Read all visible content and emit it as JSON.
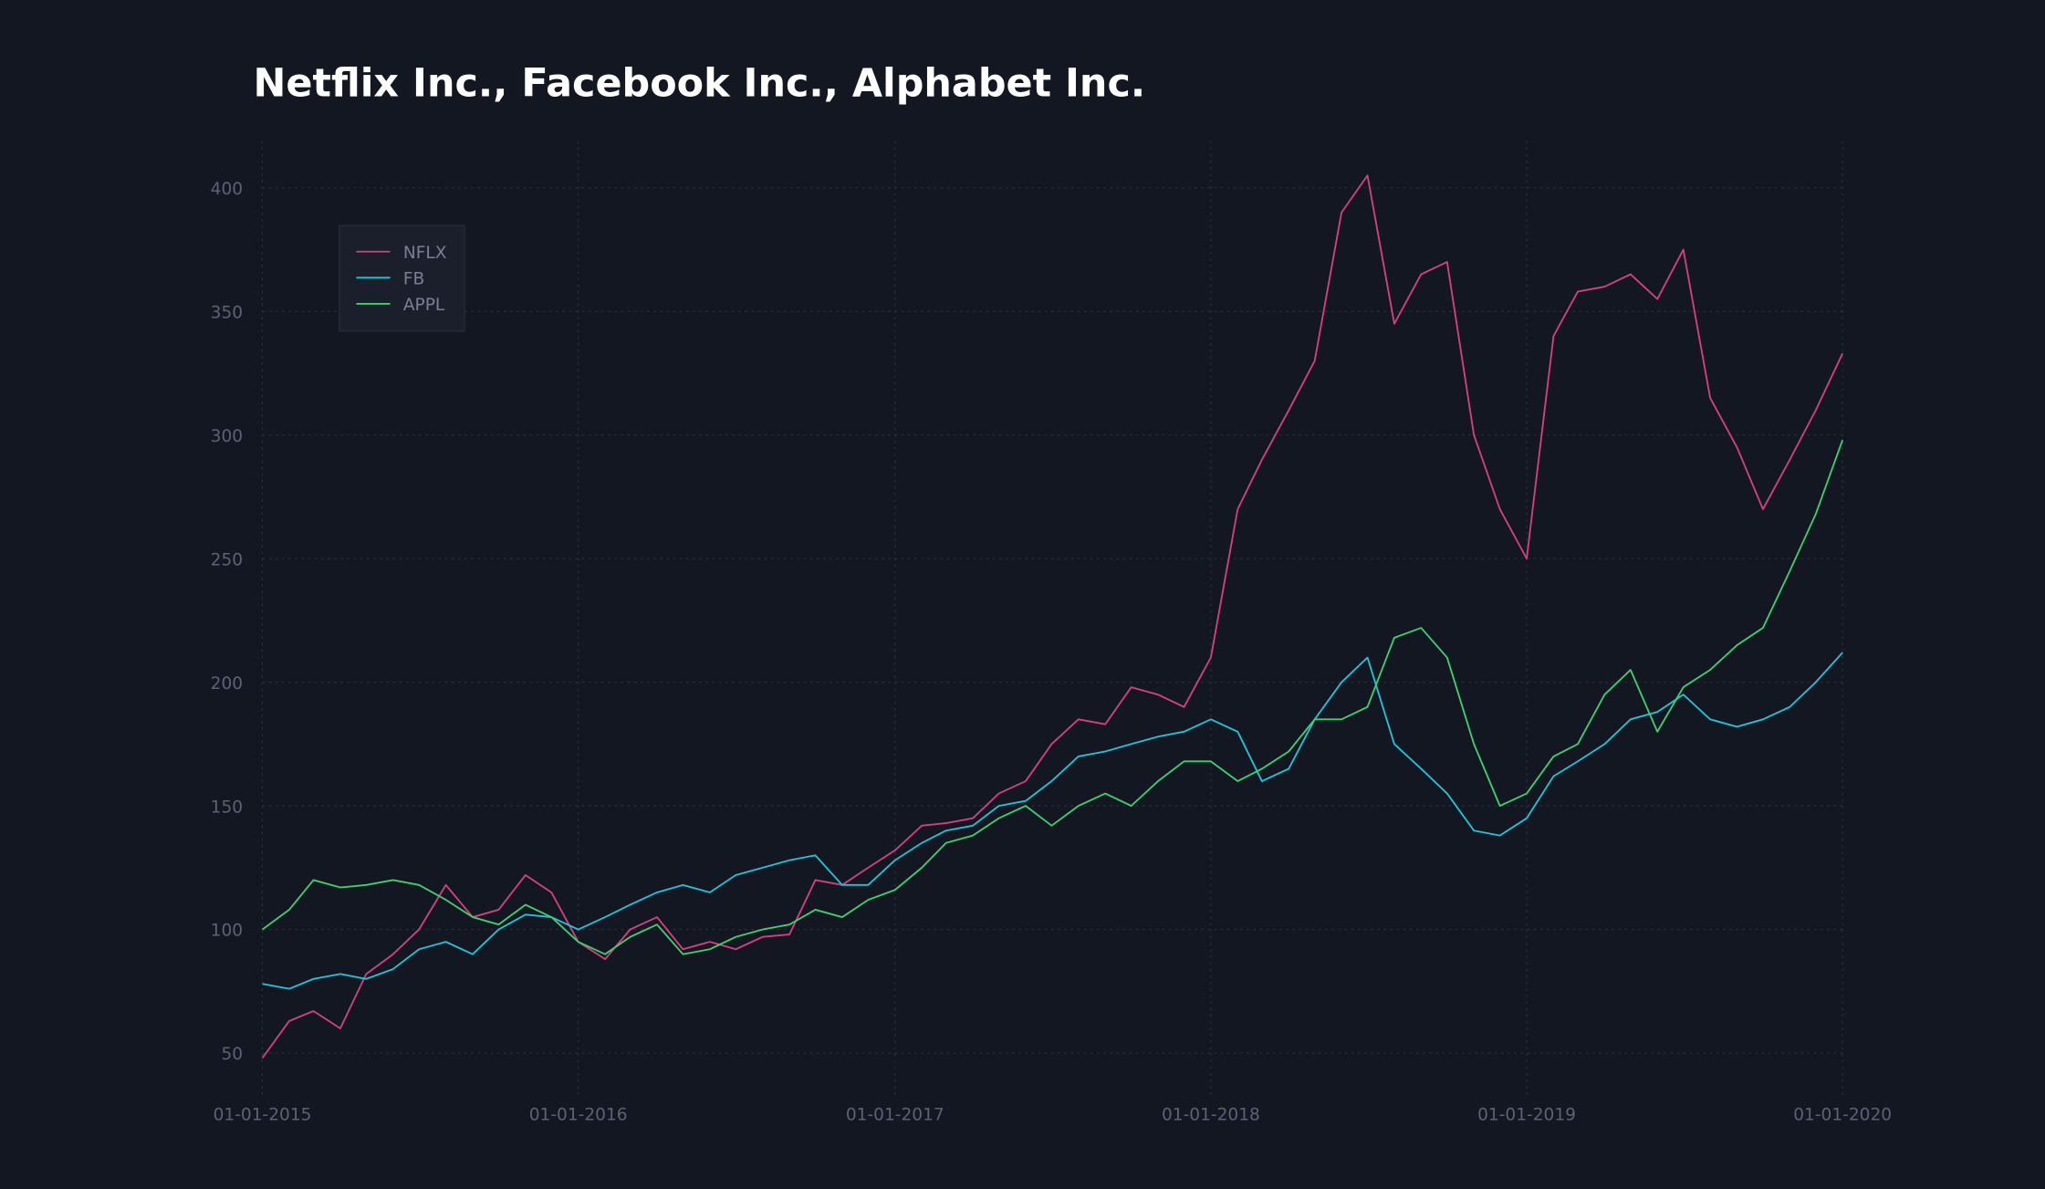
{
  "chart_data": {
    "type": "line",
    "title": "Netflix Inc., Facebook Inc., Alphabet Inc.",
    "x": [
      "2015-01-01",
      "2015-02-01",
      "2015-03-01",
      "2015-04-01",
      "2015-05-01",
      "2015-06-01",
      "2015-07-01",
      "2015-08-01",
      "2015-09-01",
      "2015-10-01",
      "2015-11-01",
      "2015-12-01",
      "2016-01-01",
      "2016-02-01",
      "2016-03-01",
      "2016-04-01",
      "2016-05-01",
      "2016-06-01",
      "2016-07-01",
      "2016-08-01",
      "2016-09-01",
      "2016-10-01",
      "2016-11-01",
      "2016-12-01",
      "2017-01-01",
      "2017-02-01",
      "2017-03-01",
      "2017-04-01",
      "2017-05-01",
      "2017-06-01",
      "2017-07-01",
      "2017-08-01",
      "2017-09-01",
      "2017-10-01",
      "2017-11-01",
      "2017-12-01",
      "2018-01-01",
      "2018-02-01",
      "2018-03-01",
      "2018-04-01",
      "2018-05-01",
      "2018-06-01",
      "2018-07-01",
      "2018-08-01",
      "2018-09-01",
      "2018-10-01",
      "2018-11-01",
      "2018-12-01",
      "2019-01-01",
      "2019-02-01",
      "2019-03-01",
      "2019-04-01",
      "2019-05-01",
      "2019-06-01",
      "2019-07-01",
      "2019-08-01",
      "2019-09-01",
      "2019-10-01",
      "2019-11-01",
      "2019-12-01",
      "2020-01-01"
    ],
    "series": [
      {
        "name": "NFLX",
        "color": "#d63f7f",
        "values": [
          48,
          63,
          67,
          60,
          82,
          90,
          100,
          118,
          105,
          108,
          122,
          115,
          95,
          88,
          100,
          105,
          92,
          95,
          92,
          97,
          98,
          120,
          118,
          125,
          132,
          142,
          143,
          145,
          155,
          160,
          175,
          185,
          183,
          198,
          195,
          190,
          210,
          270,
          290,
          310,
          330,
          390,
          405,
          345,
          365,
          370,
          300,
          270,
          250,
          340,
          358,
          360,
          365,
          355,
          375,
          315,
          295,
          270,
          290,
          310,
          333
        ]
      },
      {
        "name": "FB",
        "color": "#22c3d6",
        "values": [
          78,
          76,
          80,
          82,
          80,
          84,
          92,
          95,
          90,
          100,
          106,
          105,
          100,
          105,
          110,
          115,
          118,
          115,
          122,
          125,
          128,
          130,
          118,
          118,
          128,
          135,
          140,
          142,
          150,
          152,
          160,
          170,
          172,
          175,
          178,
          180,
          185,
          180,
          160,
          165,
          185,
          200,
          210,
          175,
          165,
          155,
          140,
          138,
          145,
          162,
          168,
          175,
          185,
          188,
          195,
          185,
          182,
          185,
          190,
          200,
          212
        ]
      },
      {
        "name": "APPL",
        "color": "#3ecf6e",
        "values": [
          100,
          108,
          120,
          117,
          118,
          120,
          118,
          112,
          105,
          102,
          110,
          105,
          95,
          90,
          97,
          102,
          90,
          92,
          97,
          100,
          102,
          108,
          105,
          112,
          116,
          125,
          135,
          138,
          145,
          150,
          142,
          150,
          155,
          150,
          160,
          168,
          168,
          160,
          165,
          172,
          185,
          185,
          190,
          218,
          222,
          210,
          175,
          150,
          155,
          170,
          175,
          195,
          205,
          180,
          198,
          205,
          215,
          222,
          245,
          268,
          298
        ]
      }
    ],
    "xlim": [
      "2015-01-01",
      "2020-01-01"
    ],
    "xticks": [
      {
        "value": "2015-01-01",
        "label": "01-01-2015"
      },
      {
        "value": "2016-01-01",
        "label": "01-01-2016"
      },
      {
        "value": "2017-01-01",
        "label": "01-01-2017"
      },
      {
        "value": "2018-01-01",
        "label": "01-01-2018"
      },
      {
        "value": "2019-01-01",
        "label": "01-01-2019"
      },
      {
        "value": "2020-01-01",
        "label": "01-01-2020"
      }
    ],
    "ylim": [
      33,
      419
    ],
    "yticks": [
      50,
      100,
      150,
      200,
      250,
      300,
      350,
      400
    ],
    "grid": true,
    "legend": "upper left"
  }
}
